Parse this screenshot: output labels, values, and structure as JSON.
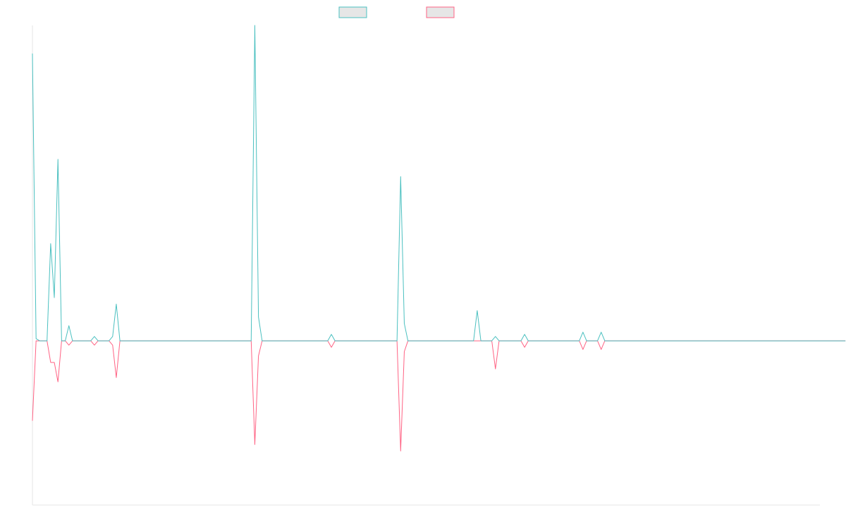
{
  "colors": {
    "series_a": "#4bc0c0",
    "series_b": "#ff6384",
    "swatch_fill": "#e6e6e6",
    "axis": "#e5e5e5"
  },
  "chart_data": {
    "type": "line",
    "title": "",
    "xlabel": "",
    "ylabel": "",
    "legend_position": "top-center",
    "grid": false,
    "x_range": [
      0,
      216
    ],
    "ylim": [
      -76,
      146
    ],
    "y_zero": 0,
    "series": [
      {
        "color": "#4bc0c0",
        "values": [
          133,
          1,
          0,
          0,
          0,
          45,
          20,
          84,
          0,
          0,
          7,
          0,
          0,
          0,
          0,
          0,
          0,
          2,
          0,
          0,
          0,
          0,
          2,
          17,
          0,
          0,
          0,
          0,
          0,
          0,
          0,
          0,
          0,
          0,
          0,
          0,
          0,
          0,
          0,
          0,
          0,
          0,
          0,
          0,
          0,
          0,
          0,
          0,
          0,
          0,
          0,
          0,
          0,
          0,
          0,
          0,
          0,
          0,
          0,
          0,
          0,
          146,
          11,
          0,
          0,
          0,
          0,
          0,
          0,
          0,
          0,
          0,
          0,
          0,
          0,
          0,
          0,
          0,
          0,
          0,
          0,
          0,
          3,
          0,
          0,
          0,
          0,
          0,
          0,
          0,
          0,
          0,
          0,
          0,
          0,
          0,
          0,
          0,
          0,
          0,
          0,
          76,
          8,
          0,
          0,
          0,
          0,
          0,
          0,
          0,
          0,
          0,
          0,
          0,
          0,
          0,
          0,
          0,
          0,
          0,
          0,
          0,
          14,
          0,
          0,
          0,
          0,
          2,
          0,
          0,
          0,
          0,
          0,
          0,
          0,
          3,
          0,
          0,
          0,
          0,
          0,
          0,
          0,
          0,
          0,
          0,
          0,
          0,
          0,
          0,
          0,
          4,
          0,
          0,
          0,
          0,
          4,
          0,
          0,
          0,
          0,
          0,
          0,
          0,
          0,
          0,
          0,
          0,
          0,
          0,
          0,
          0,
          0,
          0,
          0,
          0,
          0,
          0,
          0,
          0,
          0,
          0,
          0,
          0,
          0,
          0,
          0,
          0,
          0,
          0,
          0,
          0,
          0,
          0,
          0,
          0,
          0,
          0,
          0,
          0,
          0,
          0,
          0,
          0,
          0,
          0,
          0,
          0,
          0,
          0,
          0,
          0,
          0,
          0,
          0,
          0,
          0,
          0,
          0,
          0,
          0,
          0,
          0,
          0
        ]
      },
      {
        "color": "#ff6384",
        "values": [
          -37,
          0,
          0,
          0,
          0,
          -10,
          -10,
          -19,
          0,
          0,
          -2,
          0,
          0,
          0,
          0,
          0,
          0,
          -2,
          0,
          0,
          0,
          0,
          -2,
          -17,
          0,
          0,
          0,
          0,
          0,
          0,
          0,
          0,
          0,
          0,
          0,
          0,
          0,
          0,
          0,
          0,
          0,
          0,
          0,
          0,
          0,
          0,
          0,
          0,
          0,
          0,
          0,
          0,
          0,
          0,
          0,
          0,
          0,
          0,
          0,
          0,
          0,
          -48,
          -7,
          0,
          0,
          0,
          0,
          0,
          0,
          0,
          0,
          0,
          0,
          0,
          0,
          0,
          0,
          0,
          0,
          0,
          0,
          0,
          -3,
          0,
          0,
          0,
          0,
          0,
          0,
          0,
          0,
          0,
          0,
          0,
          0,
          0,
          0,
          0,
          0,
          0,
          0,
          -51,
          -5,
          0,
          0,
          0,
          0,
          0,
          0,
          0,
          0,
          0,
          0,
          0,
          0,
          0,
          0,
          0,
          0,
          0,
          0,
          0,
          0,
          0,
          0,
          0,
          0,
          -13,
          0,
          0,
          0,
          0,
          0,
          0,
          0,
          -3,
          0,
          0,
          0,
          0,
          0,
          0,
          0,
          0,
          0,
          0,
          0,
          0,
          0,
          0,
          0,
          -4,
          0,
          0,
          0,
          0,
          -4,
          0,
          0,
          0,
          0,
          0,
          0,
          0,
          0,
          0,
          0,
          0,
          0,
          0,
          0,
          0,
          0,
          0,
          0,
          0,
          0,
          0,
          0,
          0,
          0,
          0,
          0,
          0,
          0,
          0,
          0,
          0,
          0,
          0,
          0,
          0,
          0,
          0,
          0,
          0,
          0,
          0,
          0,
          0,
          0,
          0,
          0,
          0,
          0,
          0,
          0,
          0,
          0,
          0,
          0,
          0,
          0,
          0,
          0,
          0,
          0,
          0,
          0,
          0,
          0,
          0,
          0,
          0
        ]
      }
    ]
  }
}
